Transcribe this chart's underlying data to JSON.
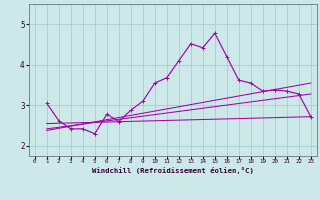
{
  "title": "",
  "xlabel": "Windchill (Refroidissement éolien,°C)",
  "bg_color": "#cce8e8",
  "grid_color": "#99cccc",
  "line_color": "#aa00aa",
  "xlim": [
    -0.5,
    23.5
  ],
  "ylim": [
    1.75,
    5.5
  ],
  "xticks": [
    0,
    1,
    2,
    3,
    4,
    5,
    6,
    7,
    8,
    9,
    10,
    11,
    12,
    13,
    14,
    15,
    16,
    17,
    18,
    19,
    20,
    21,
    22,
    23
  ],
  "yticks": [
    2,
    3,
    4,
    5
  ],
  "curve1_x": [
    1,
    2,
    3,
    4,
    5,
    6,
    7,
    8,
    9,
    10,
    11,
    12,
    13,
    14,
    15,
    16,
    17,
    18,
    19,
    20,
    21,
    22,
    23
  ],
  "curve1_y": [
    3.05,
    2.62,
    2.42,
    2.42,
    2.3,
    2.78,
    2.6,
    2.88,
    3.1,
    3.55,
    3.68,
    4.1,
    4.52,
    4.42,
    4.78,
    4.2,
    3.62,
    3.55,
    3.35,
    3.38,
    3.35,
    3.28,
    2.72
  ],
  "line1_x": [
    1,
    23
  ],
  "line1_y": [
    2.55,
    2.72
  ],
  "line2_x": [
    1,
    23
  ],
  "line2_y": [
    2.42,
    3.28
  ],
  "line3_x": [
    1,
    23
  ],
  "line3_y": [
    2.38,
    3.55
  ]
}
